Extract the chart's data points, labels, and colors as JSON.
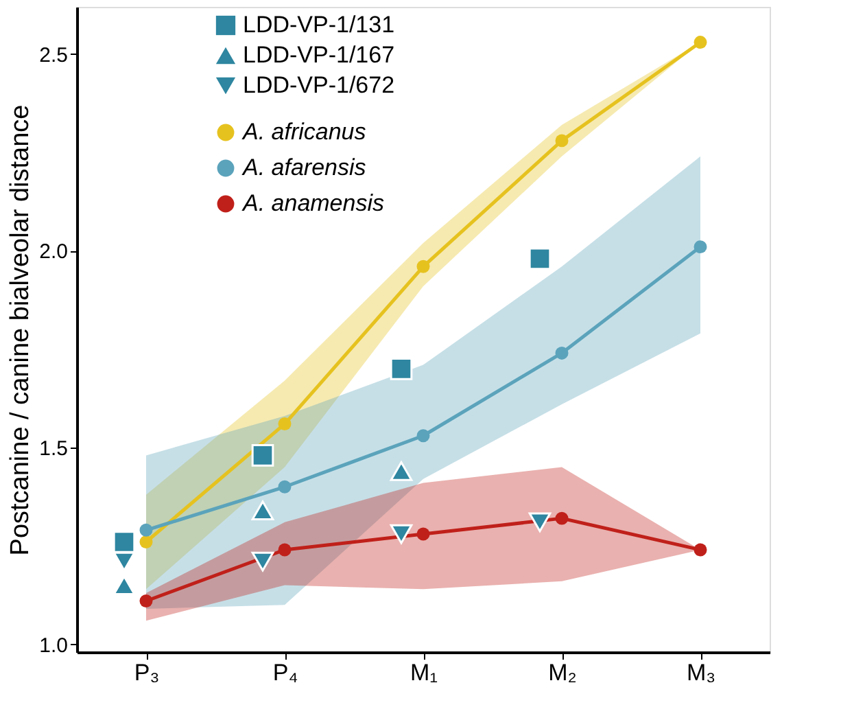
{
  "chart_data": {
    "type": "line",
    "ylabel": "Postcanine / canine bialveolar distance",
    "categories": [
      "P₃",
      "P₄",
      "M₁",
      "M₂",
      "M₃"
    ],
    "ylim": [
      0.98,
      2.62
    ],
    "yticks": [
      {
        "value": 1.0,
        "label": "1.0"
      },
      {
        "value": 1.5,
        "label": "1.5"
      },
      {
        "value": 2.0,
        "label": "2.0"
      },
      {
        "value": 2.5,
        "label": "2.5"
      }
    ],
    "grid": false,
    "legend": "top left",
    "marker": "circle",
    "line_style": "solid",
    "series": [
      {
        "name": "LDD-VP-1/131",
        "type": "scatter",
        "marker": "square",
        "color": "#2e86a0",
        "values": [
          1.26,
          1.48,
          1.7,
          1.98,
          null
        ]
      },
      {
        "name": "LDD-VP-1/167",
        "type": "scatter",
        "marker": "triangle",
        "color": "#2e86a0",
        "values": [
          1.15,
          1.34,
          1.44,
          null,
          null
        ]
      },
      {
        "name": "LDD-VP-1/672",
        "type": "scatter",
        "marker": "triangle-down",
        "color": "#2e86a0",
        "values": [
          1.21,
          1.21,
          1.28,
          1.31,
          null
        ]
      },
      {
        "name": "A. africanus",
        "color": "#e6c21f",
        "values": [
          1.26,
          1.56,
          1.96,
          2.28,
          2.53
        ],
        "lower": [
          1.14,
          1.45,
          1.91,
          2.24,
          2.53
        ],
        "upper": [
          1.38,
          1.67,
          2.02,
          2.32,
          2.53
        ]
      },
      {
        "name": "A. afarensis",
        "color": "#5ba3bb",
        "values": [
          1.29,
          1.4,
          1.53,
          1.74,
          2.01
        ],
        "lower": [
          1.09,
          1.1,
          1.42,
          1.61,
          1.79
        ],
        "upper": [
          1.48,
          1.58,
          1.71,
          1.96,
          2.24
        ]
      },
      {
        "name": "A. anamensis",
        "color": "#c0201a",
        "values": [
          1.11,
          1.24,
          1.28,
          1.32,
          1.24
        ],
        "lower": [
          1.06,
          1.15,
          1.14,
          1.16,
          1.24
        ],
        "upper": [
          1.13,
          1.31,
          1.41,
          1.45,
          1.24
        ]
      }
    ]
  }
}
